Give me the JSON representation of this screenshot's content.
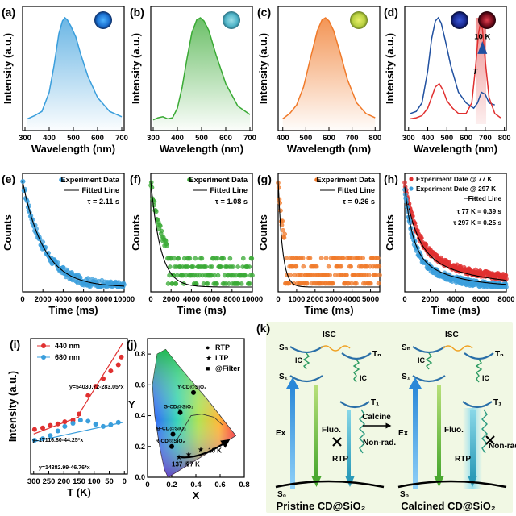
{
  "colors": {
    "blue": "#3a9edc",
    "green": "#3aaa35",
    "orange": "#f07a2a",
    "red": "#e03030",
    "navy": "#2050a0",
    "panel_k_bg": "#f1f8e4"
  },
  "chart_data": [
    {
      "id": "a",
      "panel_label": "(a)",
      "type": "line",
      "xlabel": "Wavelength (nm)",
      "ylabel": "Intensity (a.u.)",
      "xticks": [
        300,
        400,
        500,
        600,
        700
      ],
      "xlim": [
        290,
        710
      ],
      "ylim": [
        0,
        1
      ],
      "series": [
        {
          "color": "#3a9edc",
          "x": [
            310,
            340,
            370,
            400,
            420,
            440,
            455,
            465,
            475,
            490,
            510,
            530,
            560,
            600,
            650,
            700
          ],
          "y": [
            0.05,
            0.08,
            0.12,
            0.3,
            0.55,
            0.85,
            0.97,
            1.0,
            0.98,
            0.92,
            0.82,
            0.66,
            0.45,
            0.25,
            0.12,
            0.07
          ]
        }
      ],
      "inset_icon": "blue-glow-vial"
    },
    {
      "id": "b",
      "panel_label": "(b)",
      "type": "line",
      "xlabel": "Wavelength (nm)",
      "ylabel": "Intensity (a.u.)",
      "xticks": [
        300,
        400,
        500,
        600,
        700
      ],
      "xlim": [
        290,
        710
      ],
      "ylim": [
        0,
        1
      ],
      "series": [
        {
          "color": "#3aaa35",
          "x": [
            300,
            320,
            340,
            360,
            380,
            400,
            420,
            440,
            460,
            480,
            495,
            510,
            530,
            560,
            600,
            650,
            700
          ],
          "y": [
            0.04,
            0.06,
            0.07,
            0.05,
            0.06,
            0.15,
            0.35,
            0.62,
            0.86,
            0.98,
            1.0,
            0.97,
            0.88,
            0.65,
            0.38,
            0.17,
            0.09
          ]
        }
      ],
      "inset_icon": "cyan-powder-vial"
    },
    {
      "id": "c",
      "panel_label": "(c)",
      "type": "line",
      "xlabel": "Wavelength (nm)",
      "ylabel": "Intensity (a.u.)",
      "xticks": [
        400,
        500,
        600,
        700,
        800
      ],
      "xlim": [
        380,
        820
      ],
      "ylim": [
        0,
        1
      ],
      "series": [
        {
          "color": "#f07a2a",
          "x": [
            400,
            430,
            460,
            490,
            520,
            550,
            570,
            585,
            600,
            620,
            650,
            680,
            720,
            760,
            800
          ],
          "y": [
            0.05,
            0.1,
            0.18,
            0.35,
            0.62,
            0.88,
            0.98,
            1.0,
            0.97,
            0.88,
            0.66,
            0.42,
            0.2,
            0.1,
            0.06
          ]
        }
      ],
      "inset_icon": "yellow-green-vial"
    },
    {
      "id": "d",
      "panel_label": "(d)",
      "type": "line",
      "xlabel": "Wavelength (nm)",
      "ylabel": "Intensity (a.u.)",
      "xticks": [
        300,
        400,
        500,
        600,
        700,
        800
      ],
      "xlim": [
        280,
        810
      ],
      "ylim": [
        0,
        1
      ],
      "series": [
        {
          "color": "#2050a0",
          "x": [
            310,
            340,
            370,
            400,
            420,
            440,
            455,
            470,
            490,
            520,
            560,
            600,
            640,
            660,
            680,
            700,
            720,
            750
          ],
          "y": [
            0.1,
            0.12,
            0.2,
            0.5,
            0.8,
            0.97,
            1.0,
            0.95,
            0.8,
            0.55,
            0.3,
            0.2,
            0.15,
            0.2,
            0.3,
            0.28,
            0.2,
            0.18
          ]
        },
        {
          "color": "#e03030",
          "x": [
            310,
            340,
            370,
            400,
            420,
            440,
            460,
            480,
            500,
            530,
            560,
            600,
            630,
            650,
            665,
            675,
            685,
            700,
            720,
            750,
            780
          ],
          "y": [
            0.05,
            0.06,
            0.08,
            0.15,
            0.25,
            0.35,
            0.38,
            0.32,
            0.22,
            0.15,
            0.1,
            0.1,
            0.2,
            0.55,
            0.85,
            0.95,
            0.9,
            0.6,
            0.25,
            0.1,
            0.06
          ]
        }
      ],
      "annotations": {
        "arrow_label": "10 K",
        "variable": "T"
      },
      "inset_icons": [
        "blue-glow-vial",
        "red-glow-vial"
      ]
    },
    {
      "id": "e",
      "panel_label": "(e)",
      "type": "scatter",
      "xlabel": "Time (ms)",
      "ylabel": "Counts",
      "xticks": [
        0,
        2000,
        4000,
        6000,
        8000,
        10000
      ],
      "xlim": [
        0,
        10000
      ],
      "tau_s": 2.11,
      "noise": 0.04,
      "noise_floor": 0.0,
      "color": "#3a9edc",
      "legend": [
        "Experiment Data",
        "Fitted Line"
      ],
      "tau_label": "τ = 2.11 s"
    },
    {
      "id": "f",
      "panel_label": "(f)",
      "type": "scatter",
      "xlabel": "Time (ms)",
      "ylabel": "Counts",
      "xticks": [
        0,
        2000,
        4000,
        6000,
        8000,
        10000
      ],
      "xlim": [
        0,
        10000
      ],
      "tau_s": 1.08,
      "noise": 0.05,
      "noise_floor": 0.22,
      "color": "#3aaa35",
      "legend": [
        "Experiment Data",
        "Fitted Line"
      ],
      "tau_label": "τ = 1.08 s"
    },
    {
      "id": "g",
      "panel_label": "(g)",
      "type": "scatter",
      "xlabel": "Time (ms)",
      "ylabel": "Counts",
      "xticks": [
        0,
        1000,
        2000,
        3000,
        4000,
        5000
      ],
      "xlim": [
        0,
        5500
      ],
      "tau_s": 0.26,
      "noise": 0.05,
      "noise_floor": 0.28,
      "color": "#f07a2a",
      "legend": [
        "Experiment Data",
        "Fitted Line"
      ],
      "tau_label": "τ = 0.26 s"
    },
    {
      "id": "h",
      "panel_label": "(h)",
      "type": "scatter",
      "xlabel": "Time (ms)",
      "ylabel": "Counts",
      "xticks": [
        0,
        2000,
        4000,
        6000,
        8000
      ],
      "xlim": [
        0,
        8000
      ],
      "series": [
        {
          "name": "Experiment Date @  77 K",
          "color": "#e03030",
          "tau_s": 0.39
        },
        {
          "name": "Experiment Date @ 297 K",
          "color": "#3a9edc",
          "tau_s": 0.25
        }
      ],
      "legend": [
        "Experiment Date @  77 K",
        "Experiment Date @ 297 K",
        "Fitted Line"
      ],
      "tau_labels": [
        "τ 77 K = 0.39 s",
        "τ 297 K = 0.25 s"
      ]
    },
    {
      "id": "i",
      "panel_label": "(i)",
      "type": "scatter",
      "xlabel": "T (K)",
      "ylabel": "Intensity (a.u.)",
      "xticks": [
        300,
        250,
        200,
        150,
        100,
        50,
        0
      ],
      "xlim": [
        310,
        -10
      ],
      "ylim": [
        10000,
        54000
      ],
      "series": [
        {
          "name": "440 nm",
          "color": "#e03030",
          "x": [
            297,
            270,
            245,
            220,
            197,
            170,
            150,
            120,
            95,
            70,
            45,
            20,
            10
          ],
          "y": [
            24500,
            25000,
            25800,
            26300,
            27000,
            27500,
            29500,
            35500,
            38500,
            41000,
            43500,
            45500,
            48000
          ]
        },
        {
          "name": "680 nm",
          "color": "#3a9edc",
          "x": [
            297,
            270,
            245,
            220,
            197,
            170,
            145,
            120,
            95,
            70,
            45,
            20
          ],
          "y": [
            21000,
            21500,
            22500,
            24000,
            25500,
            26500,
            27500,
            27200,
            26200,
            25500,
            26000,
            26800
          ]
        }
      ],
      "fit_labels": [
        "y=54030.72-283.05*x",
        "y=17116.80-44.25*x",
        "y=14382.99-46.76*x"
      ]
    },
    {
      "id": "j",
      "panel_label": "(j)",
      "type": "scatter",
      "xlabel": "X",
      "ylabel": "Y",
      "xticks": [
        0.0,
        0.2,
        0.4,
        0.6,
        0.8
      ],
      "yticks": [
        0.0,
        0.2,
        0.4,
        0.6,
        0.8
      ],
      "xlim": [
        0,
        0.8
      ],
      "ylim": [
        0,
        0.9
      ],
      "legend": [
        "RTP",
        "LTP",
        "@Filter"
      ],
      "points": [
        {
          "label": "Y-CD@SiO₂",
          "x": 0.38,
          "y": 0.55
        },
        {
          "label": "G-CD@SiO₂",
          "x": 0.27,
          "y": 0.42
        },
        {
          "label": "B-CD@SiO₂",
          "x": 0.21,
          "y": 0.28
        },
        {
          "label": "R-CD@SiO₂",
          "x": 0.2,
          "y": 0.2
        }
      ],
      "ltp_points": [
        {
          "x": 0.26,
          "y": 0.13
        },
        {
          "x": 0.34,
          "y": 0.15
        },
        {
          "x": 0.44,
          "y": 0.18
        }
      ],
      "annotations": [
        "137 K",
        "77 K",
        "10 K"
      ]
    }
  ],
  "diagram_k": {
    "panel_label": "(k)",
    "left_caption": "Pristine CD@SiO₂",
    "right_caption": "Calcined CD@SiO₂",
    "arrow_label": "Calcine",
    "levels": {
      "sn": "Sₙ",
      "tn": "Tₙ",
      "s1": "S₁",
      "t1": "T₁",
      "s0": "S₀",
      "ic": "IC",
      "isc": "ISC"
    },
    "processes": {
      "ex": "Ex",
      "fluo": "Fluo.",
      "rtp": "RTP",
      "nonrad": "Non-rad."
    }
  }
}
